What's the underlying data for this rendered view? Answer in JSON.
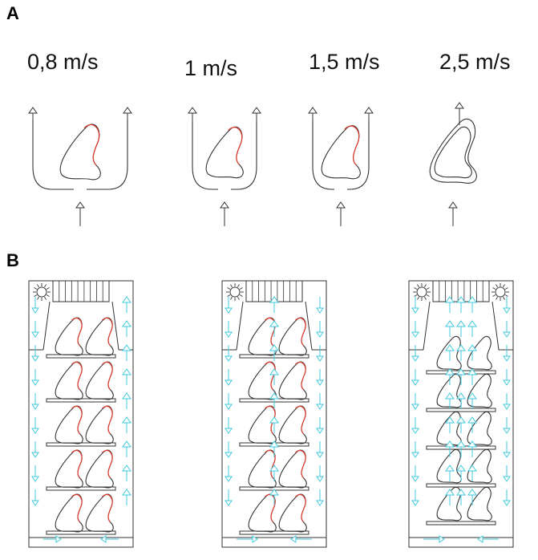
{
  "panel_a": {
    "label": "A",
    "speeds": [
      "0,8 m/s",
      "1 m/s",
      "1,5 m/s",
      "2,5 m/s"
    ]
  },
  "panel_b": {
    "label": "B"
  },
  "colors": {
    "outline": "#333333",
    "highlight": "#e23b2e",
    "airflow": "#3fc9dc"
  }
}
